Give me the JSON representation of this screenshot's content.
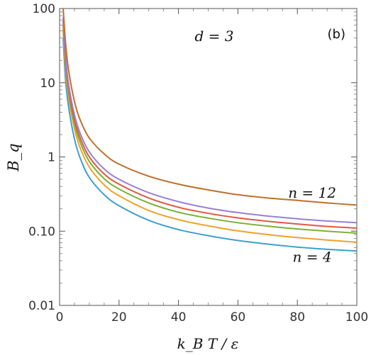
{
  "chart_data": {
    "type": "line",
    "title": "",
    "panel_label": "(b)",
    "annotation": "d = 3",
    "xlabel": "k_B T / ε",
    "ylabel": "B_q",
    "xscale": "linear",
    "yscale": "log",
    "xlim": [
      0,
      100
    ],
    "ylim": [
      0.01,
      100
    ],
    "xticks": [
      "0",
      "20",
      "40",
      "60",
      "80",
      "100"
    ],
    "xtick_values": [
      0,
      20,
      40,
      60,
      80,
      100
    ],
    "yticks": [
      "0.01",
      "0.10",
      "1",
      "10",
      "100"
    ],
    "ytick_values": [
      0.01,
      0.1,
      1,
      10,
      100
    ],
    "grid": false,
    "legend": "none",
    "curve_labels": [
      {
        "text": "n = 12",
        "near_x": 85,
        "near_y": 0.33
      },
      {
        "text": "n = 4",
        "near_x": 85,
        "near_y": 0.045
      }
    ],
    "series": [
      {
        "color": "#3e9fd1",
        "x": [
          1.2,
          2,
          3,
          5,
          7,
          10,
          15,
          20,
          30,
          40,
          50,
          60,
          70,
          80,
          90,
          100
        ],
        "values": [
          40,
          11,
          4.8,
          1.75,
          0.95,
          0.53,
          0.31,
          0.22,
          0.14,
          0.105,
          0.087,
          0.075,
          0.067,
          0.061,
          0.057,
          0.054
        ]
      },
      {
        "color": "#f0a22a",
        "x": [
          1.2,
          2,
          3,
          5,
          7,
          10,
          15,
          20,
          30,
          40,
          50,
          60,
          70,
          80,
          90,
          100
        ],
        "values": [
          52,
          15,
          6.5,
          2.4,
          1.3,
          0.73,
          0.42,
          0.3,
          0.19,
          0.143,
          0.118,
          0.101,
          0.09,
          0.082,
          0.076,
          0.071
        ]
      },
      {
        "color": "#7ab034",
        "x": [
          1.2,
          2,
          3,
          5,
          7,
          10,
          15,
          20,
          30,
          40,
          50,
          60,
          70,
          80,
          90,
          100
        ],
        "values": [
          60,
          18,
          7.6,
          2.8,
          1.55,
          0.87,
          0.51,
          0.37,
          0.24,
          0.18,
          0.15,
          0.13,
          0.117,
          0.107,
          0.1,
          0.094
        ]
      },
      {
        "color": "#e2583e",
        "x": [
          1.2,
          2,
          3,
          5,
          7,
          10,
          15,
          20,
          30,
          40,
          50,
          60,
          70,
          80,
          90,
          100
        ],
        "values": [
          68,
          20,
          8.6,
          3.2,
          1.78,
          1.0,
          0.59,
          0.43,
          0.28,
          0.21,
          0.174,
          0.151,
          0.136,
          0.125,
          0.116,
          0.11
        ]
      },
      {
        "color": "#9b7fd6",
        "x": [
          1.2,
          2,
          3,
          5,
          7,
          10,
          15,
          20,
          30,
          40,
          50,
          60,
          70,
          80,
          90,
          100
        ],
        "values": [
          76,
          23,
          9.8,
          3.7,
          2.05,
          1.17,
          0.69,
          0.5,
          0.33,
          0.25,
          0.205,
          0.178,
          0.16,
          0.147,
          0.137,
          0.13
        ]
      },
      {
        "color": "#c0702a",
        "x": [
          1.2,
          2,
          3,
          5,
          7,
          10,
          15,
          20,
          30,
          40,
          50,
          60,
          70,
          80,
          90,
          100
        ],
        "values": [
          100,
          35,
          15,
          5.6,
          3.1,
          1.8,
          1.1,
          0.8,
          0.55,
          0.43,
          0.36,
          0.31,
          0.28,
          0.26,
          0.24,
          0.225
        ]
      }
    ]
  }
}
